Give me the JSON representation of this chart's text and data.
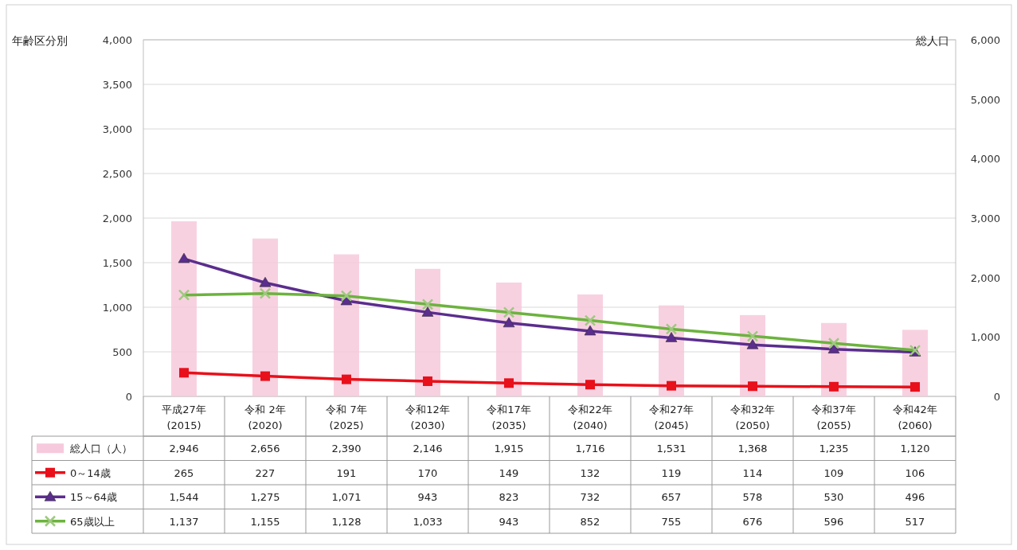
{
  "chart_data": {
    "type": "line",
    "ylabel": "年齢区分別",
    "y2label": "総人口",
    "categories": [
      "平成27年\n(2015)",
      "令和 2年\n(2020)",
      "令和 7年\n(2025)",
      "令和12年\n(2030)",
      "令和17年\n(2035)",
      "令和22年\n(2040)",
      "令和27年\n(2045)",
      "令和32年\n(2050)",
      "令和37年\n(2055)",
      "令和42年\n(2060)"
    ],
    "series": [
      {
        "name": "総人口（人）",
        "type": "bar",
        "axis": "y2",
        "color": "#f7c9dc",
        "values": [
          2946,
          2656,
          2390,
          2146,
          1915,
          1716,
          1531,
          1368,
          1235,
          1120
        ],
        "value_labels": [
          "2,946",
          "2,656",
          "2,390",
          "2,146",
          "1,915",
          "1,716",
          "1,531",
          "1,368",
          "1,235",
          "1,120"
        ]
      },
      {
        "name": "0～14歳",
        "color": "#e8101a",
        "marker": "square",
        "values": [
          265,
          227,
          191,
          170,
          149,
          132,
          119,
          114,
          109,
          106
        ],
        "value_labels": [
          "265",
          "227",
          "191",
          "170",
          "149",
          "132",
          "119",
          "114",
          "109",
          "106"
        ]
      },
      {
        "name": "15～64歳",
        "color": "#5b2d8e",
        "marker": "triangle",
        "values": [
          1544,
          1275,
          1071,
          943,
          823,
          732,
          657,
          578,
          530,
          496
        ],
        "value_labels": [
          "1,544",
          "1,275",
          "1,071",
          "943",
          "823",
          "732",
          "657",
          "578",
          "530",
          "496"
        ]
      },
      {
        "name": "65歳以上",
        "color": "#6cb33e",
        "marker": "cross",
        "values": [
          1137,
          1155,
          1128,
          1033,
          943,
          852,
          755,
          676,
          596,
          517
        ],
        "value_labels": [
          "1,137",
          "1,155",
          "1,128",
          "1,033",
          "943",
          "852",
          "755",
          "676",
          "596",
          "517"
        ]
      }
    ],
    "ylim": [
      0,
      4000
    ],
    "yticks": [
      0,
      {
        "value": 500,
        "label": "500"
      },
      {
        "value": 1000,
        "label": "1,000"
      },
      {
        "value": 1500,
        "label": "1,500"
      },
      {
        "value": 2000,
        "label": "2,000"
      },
      {
        "value": 2500,
        "label": "2,500"
      },
      {
        "value": 3000,
        "label": "3,000"
      },
      {
        "value": 3500,
        "label": "3,500"
      },
      {
        "value": 4000,
        "label": "4,000"
      }
    ],
    "y2lim": [
      0,
      6000
    ],
    "y2ticks": [
      0,
      {
        "value": 1000,
        "label": "1,000"
      },
      {
        "value": 2000,
        "label": "2,000"
      },
      {
        "value": 3000,
        "label": "3,000"
      },
      {
        "value": 4000,
        "label": "4,000"
      },
      {
        "value": 5000,
        "label": "5,000"
      },
      {
        "value": 6000,
        "label": "6,000"
      }
    ],
    "grid": "y",
    "legend": "bottom",
    "line_style": "solid"
  }
}
